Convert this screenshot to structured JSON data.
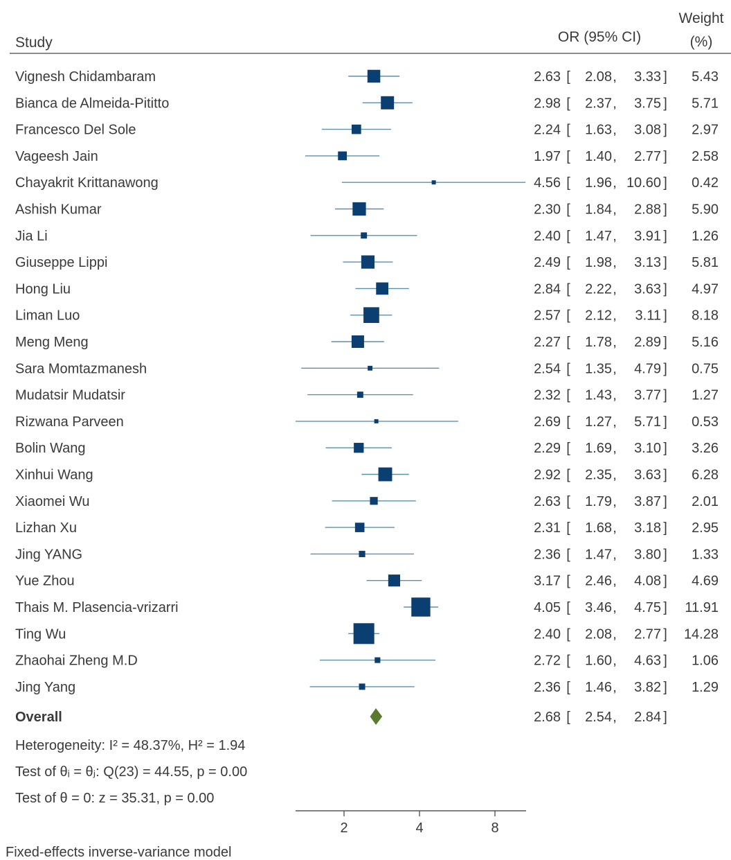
{
  "header": {
    "study": "Study",
    "or_ci": "OR (95% CI)",
    "weight_line1": "Weight",
    "weight_line2": "(%)"
  },
  "footer": {
    "heterogeneity": "Heterogeneity: I² = 48.37%, H² = 1.94",
    "test_q": "Test of θᵢ = θⱼ: Q(23) = 44.55, p = 0.00",
    "test_z": "Test of θ = 0: z = 35.31, p = 0.00",
    "model": "Fixed-effects inverse-variance model"
  },
  "colors": {
    "marker": "#0b3f72",
    "diamond": "#5a7a2e",
    "ci_line": "#5a8fb0",
    "text": "#3a3a3a"
  },
  "chart_data": {
    "type": "forest",
    "x_scale": "log",
    "x_ticks": [
      2,
      4,
      8
    ],
    "studies": [
      {
        "name": "Vignesh Chidambaram",
        "or": 2.63,
        "lo": 2.08,
        "hi": 3.33,
        "or_text": "2.63",
        "lo_text": "2.08",
        "hi_text": "3.33",
        "weight": "5.43"
      },
      {
        "name": "Bianca de Almeida-Pititto",
        "or": 2.98,
        "lo": 2.37,
        "hi": 3.75,
        "or_text": "2.98",
        "lo_text": "2.37",
        "hi_text": "3.75",
        "weight": "5.71"
      },
      {
        "name": "Francesco Del Sole",
        "or": 2.24,
        "lo": 1.63,
        "hi": 3.08,
        "or_text": "2.24",
        "lo_text": "1.63",
        "hi_text": "3.08",
        "weight": "2.97"
      },
      {
        "name": "Vageesh Jain",
        "or": 1.97,
        "lo": 1.4,
        "hi": 2.77,
        "or_text": "1.97",
        "lo_text": "1.40",
        "hi_text": "2.77",
        "weight": "2.58"
      },
      {
        "name": "Chayakrit Krittanawong",
        "or": 4.56,
        "lo": 1.96,
        "hi": 10.6,
        "or_text": "4.56",
        "lo_text": "1.96",
        "hi_text": "10.60",
        "weight": "0.42"
      },
      {
        "name": "Ashish Kumar",
        "or": 2.3,
        "lo": 1.84,
        "hi": 2.88,
        "or_text": "2.30",
        "lo_text": "1.84",
        "hi_text": "2.88",
        "weight": "5.90"
      },
      {
        "name": "Jia Li",
        "or": 2.4,
        "lo": 1.47,
        "hi": 3.91,
        "or_text": "2.40",
        "lo_text": "1.47",
        "hi_text": "3.91",
        "weight": "1.26"
      },
      {
        "name": "Giuseppe Lippi",
        "or": 2.49,
        "lo": 1.98,
        "hi": 3.13,
        "or_text": "2.49",
        "lo_text": "1.98",
        "hi_text": "3.13",
        "weight": "5.81"
      },
      {
        "name": "Hong Liu",
        "or": 2.84,
        "lo": 2.22,
        "hi": 3.63,
        "or_text": "2.84",
        "lo_text": "2.22",
        "hi_text": "3.63",
        "weight": "4.97"
      },
      {
        "name": "Liman Luo",
        "or": 2.57,
        "lo": 2.12,
        "hi": 3.11,
        "or_text": "2.57",
        "lo_text": "2.12",
        "hi_text": "3.11",
        "weight": "8.18"
      },
      {
        "name": "Meng Meng",
        "or": 2.27,
        "lo": 1.78,
        "hi": 2.89,
        "or_text": "2.27",
        "lo_text": "1.78",
        "hi_text": "2.89",
        "weight": "5.16"
      },
      {
        "name": "Sara Momtazmanesh",
        "or": 2.54,
        "lo": 1.35,
        "hi": 4.79,
        "or_text": "2.54",
        "lo_text": "1.35",
        "hi_text": "4.79",
        "weight": "0.75"
      },
      {
        "name": "Mudatsir Mudatsir",
        "or": 2.32,
        "lo": 1.43,
        "hi": 3.77,
        "or_text": "2.32",
        "lo_text": "1.43",
        "hi_text": "3.77",
        "weight": "1.27"
      },
      {
        "name": "Rizwana Parveen",
        "or": 2.69,
        "lo": 1.27,
        "hi": 5.71,
        "or_text": "2.69",
        "lo_text": "1.27",
        "hi_text": "5.71",
        "weight": "0.53"
      },
      {
        "name": "Bolin Wang",
        "or": 2.29,
        "lo": 1.69,
        "hi": 3.1,
        "or_text": "2.29",
        "lo_text": "1.69",
        "hi_text": "3.10",
        "weight": "3.26"
      },
      {
        "name": "Xinhui Wang",
        "or": 2.92,
        "lo": 2.35,
        "hi": 3.63,
        "or_text": "2.92",
        "lo_text": "2.35",
        "hi_text": "3.63",
        "weight": "6.28"
      },
      {
        "name": "Xiaomei Wu",
        "or": 2.63,
        "lo": 1.79,
        "hi": 3.87,
        "or_text": "2.63",
        "lo_text": "1.79",
        "hi_text": "3.87",
        "weight": "2.01"
      },
      {
        "name": "Lizhan Xu",
        "or": 2.31,
        "lo": 1.68,
        "hi": 3.18,
        "or_text": "2.31",
        "lo_text": "1.68",
        "hi_text": "3.18",
        "weight": "2.95"
      },
      {
        "name": "Jing YANG",
        "or": 2.36,
        "lo": 1.47,
        "hi": 3.8,
        "or_text": "2.36",
        "lo_text": "1.47",
        "hi_text": "3.80",
        "weight": "1.33"
      },
      {
        "name": "Yue Zhou",
        "or": 3.17,
        "lo": 2.46,
        "hi": 4.08,
        "or_text": "3.17",
        "lo_text": "2.46",
        "hi_text": "4.08",
        "weight": "4.69"
      },
      {
        "name": "Thais M. Plasencia-vrizarri",
        "or": 4.05,
        "lo": 3.46,
        "hi": 4.75,
        "or_text": "4.05",
        "lo_text": "3.46",
        "hi_text": "4.75",
        "weight": "11.91"
      },
      {
        "name": "Ting Wu",
        "or": 2.4,
        "lo": 2.08,
        "hi": 2.77,
        "or_text": "2.40",
        "lo_text": "2.08",
        "hi_text": "2.77",
        "weight": "14.28"
      },
      {
        "name": "Zhaohai Zheng  M.D",
        "or": 2.72,
        "lo": 1.6,
        "hi": 4.63,
        "or_text": "2.72",
        "lo_text": "1.60",
        "hi_text": "4.63",
        "weight": "1.06"
      },
      {
        "name": "Jing Yang",
        "or": 2.36,
        "lo": 1.46,
        "hi": 3.82,
        "or_text": "2.36",
        "lo_text": "1.46",
        "hi_text": "3.82",
        "weight": "1.29"
      }
    ],
    "overall": {
      "name": "Overall",
      "or": 2.68,
      "lo": 2.54,
      "hi": 2.84,
      "or_text": "2.68",
      "lo_text": "2.54",
      "hi_text": "2.84"
    }
  }
}
